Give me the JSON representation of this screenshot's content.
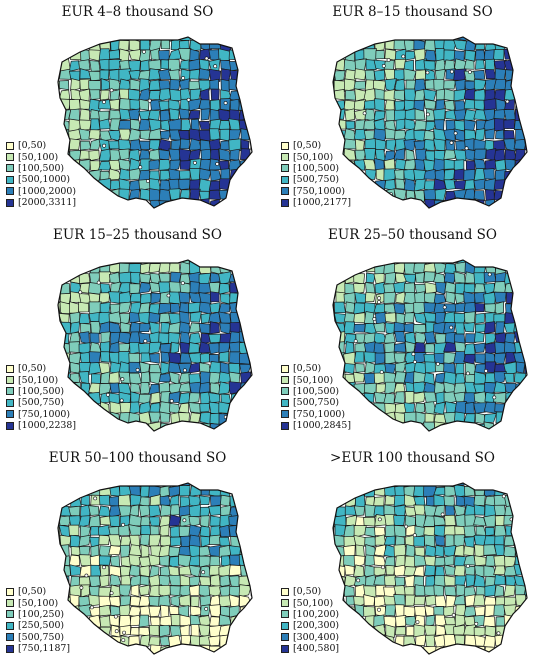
{
  "panels": [
    {
      "title": "EUR 4–8 thousand SO",
      "legend": [
        {
          "label": "[0,50)",
          "color": "#ffffcc"
        },
        {
          "label": "[50,100)",
          "color": "#c7e9b4"
        },
        {
          "label": "[100,500)",
          "color": "#7fcdbb"
        },
        {
          "label": "[500,1000)",
          "color": "#41b6c4"
        },
        {
          "label": "[1000,2000)",
          "color": "#2c7fb8"
        },
        {
          "label": "[2000,3311]",
          "color": "#253494"
        }
      ]
    },
    {
      "title": "EUR 8–15 thousand SO",
      "legend": [
        {
          "label": "[0,50)",
          "color": "#ffffcc"
        },
        {
          "label": "[50,100)",
          "color": "#c7e9b4"
        },
        {
          "label": "[100,500)",
          "color": "#7fcdbb"
        },
        {
          "label": "[500,750)",
          "color": "#41b6c4"
        },
        {
          "label": "[750,1000)",
          "color": "#2c7fb8"
        },
        {
          "label": "[1000,2177]",
          "color": "#253494"
        }
      ]
    },
    {
      "title": "EUR 15–25 thousand SO",
      "legend": [
        {
          "label": "[0,50)",
          "color": "#ffffcc"
        },
        {
          "label": "[50,100)",
          "color": "#c7e9b4"
        },
        {
          "label": "[100,500)",
          "color": "#7fcdbb"
        },
        {
          "label": "[500,750)",
          "color": "#41b6c4"
        },
        {
          "label": "[750,1000)",
          "color": "#2c7fb8"
        },
        {
          "label": "[1000,2238]",
          "color": "#253494"
        }
      ]
    },
    {
      "title": "EUR 25–50 thousand SO",
      "legend": [
        {
          "label": "[0,50)",
          "color": "#ffffcc"
        },
        {
          "label": "[50,100)",
          "color": "#c7e9b4"
        },
        {
          "label": "[100,500)",
          "color": "#7fcdbb"
        },
        {
          "label": "[500,750)",
          "color": "#41b6c4"
        },
        {
          "label": "[750,1000)",
          "color": "#2c7fb8"
        },
        {
          "label": "[1000,2845]",
          "color": "#253494"
        }
      ]
    },
    {
      "title": "EUR 50–100 thousand SO",
      "legend": [
        {
          "label": "[0,50)",
          "color": "#ffffcc"
        },
        {
          "label": "[50,100)",
          "color": "#c7e9b4"
        },
        {
          "label": "[100,250)",
          "color": "#7fcdbb"
        },
        {
          "label": "[250,500)",
          "color": "#41b6c4"
        },
        {
          "label": "[500,750)",
          "color": "#2c7fb8"
        },
        {
          "label": "[750,1187]",
          "color": "#253494"
        }
      ]
    },
    {
      "title": ">EUR 100 thousand SO",
      "legend": [
        {
          "label": "[0,50)",
          "color": "#ffffcc"
        },
        {
          "label": "[50,100)",
          "color": "#c7e9b4"
        },
        {
          "label": "[100,200)",
          "color": "#7fcdbb"
        },
        {
          "label": "[200,300)",
          "color": "#41b6c4"
        },
        {
          "label": "[300,400)",
          "color": "#2c7fb8"
        },
        {
          "label": "[400,580]",
          "color": "#253494"
        }
      ]
    }
  ]
}
